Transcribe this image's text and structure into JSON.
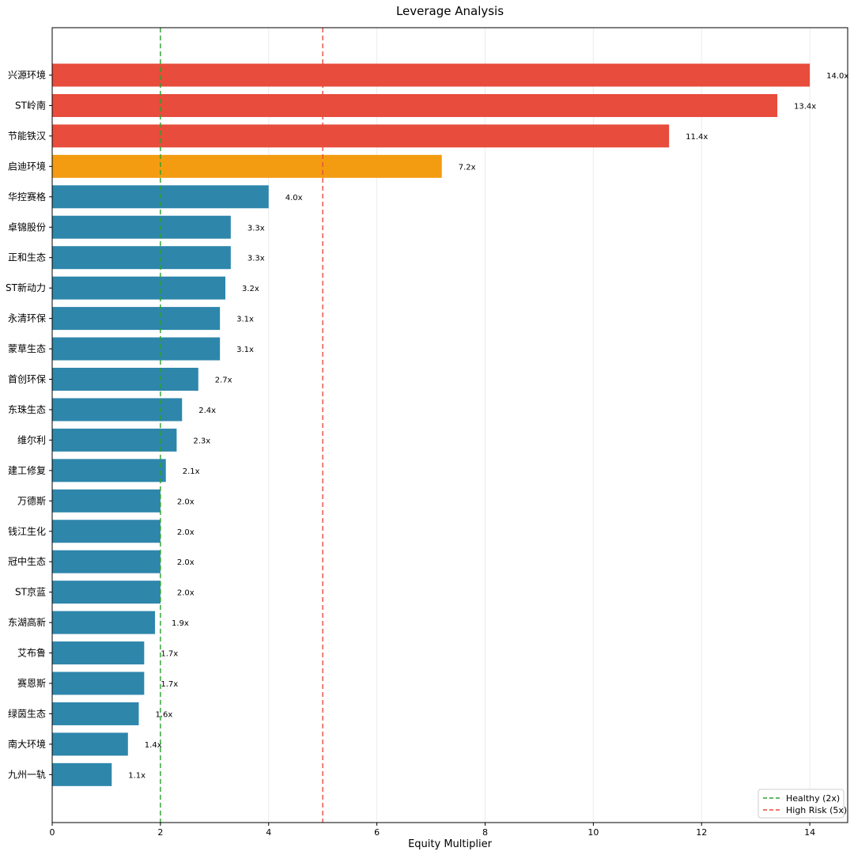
{
  "chart_data": {
    "type": "bar",
    "orientation": "horizontal",
    "title": "Leverage Analysis",
    "xlabel": "Equity Multiplier",
    "ylabel": "",
    "xlim": [
      0,
      14.7
    ],
    "xticks": [
      0,
      2,
      4,
      6,
      8,
      10,
      12,
      14
    ],
    "grid": "vertical, light",
    "categories": [
      "兴源环境",
      "ST岭南",
      "节能铁汉",
      "启迪环境",
      "华控赛格",
      "卓锦股份",
      "正和生态",
      "ST新动力",
      "永清环保",
      "蒙草生态",
      "首创环保",
      "东珠生态",
      "维尔利",
      "建工修复",
      "万德斯",
      "钱江生化",
      "冠中生态",
      "ST京蓝",
      "东湖高新",
      "艾布鲁",
      "赛恩斯",
      "绿茵生态",
      "南大环境",
      "九州一轨"
    ],
    "values": [
      14.0,
      13.4,
      11.4,
      7.2,
      4.0,
      3.3,
      3.3,
      3.2,
      3.1,
      3.1,
      2.7,
      2.4,
      2.3,
      2.1,
      2.0,
      2.0,
      2.0,
      2.0,
      1.9,
      1.7,
      1.7,
      1.6,
      1.4,
      1.1
    ],
    "value_labels": [
      "14.0x",
      "13.4x",
      "11.4x",
      "7.2x",
      "4.0x",
      "3.3x",
      "3.3x",
      "3.2x",
      "3.1x",
      "3.1x",
      "2.7x",
      "2.4x",
      "2.3x",
      "2.1x",
      "2.0x",
      "2.0x",
      "2.0x",
      "2.0x",
      "1.9x",
      "1.7x",
      "1.7x",
      "1.6x",
      "1.4x",
      "1.1x"
    ],
    "bar_colors": [
      "#e74c3c",
      "#e74c3c",
      "#e74c3c",
      "#f39c12",
      "#2e86ab",
      "#2e86ab",
      "#2e86ab",
      "#2e86ab",
      "#2e86ab",
      "#2e86ab",
      "#2e86ab",
      "#2e86ab",
      "#2e86ab",
      "#2e86ab",
      "#2e86ab",
      "#2e86ab",
      "#2e86ab",
      "#2e86ab",
      "#2e86ab",
      "#2e86ab",
      "#2e86ab",
      "#2e86ab",
      "#2e86ab",
      "#2e86ab"
    ],
    "reference_lines": [
      {
        "name": "Healthy (2x)",
        "x": 2,
        "color": "#2ca02c"
      },
      {
        "name": "High Risk (5x)",
        "x": 5,
        "color": "#e74c3c"
      }
    ],
    "legend_position": "bottom-right"
  }
}
